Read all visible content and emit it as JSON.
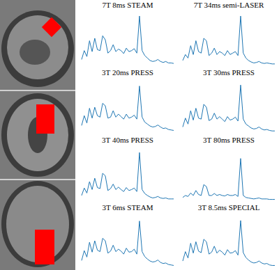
{
  "chart_data": [
    {
      "type": "line",
      "title": "7T 8ms STEAM",
      "color": "#1f77b4",
      "ylim": [
        0,
        1.1
      ],
      "tick_labels": false,
      "values": [
        0.12,
        0.3,
        0.18,
        0.5,
        0.28,
        0.55,
        0.32,
        0.3,
        0.6,
        0.52,
        0.25,
        0.3,
        0.42,
        0.28,
        0.33,
        0.3,
        0.24,
        0.35,
        0.28,
        0.3,
        0.34,
        0.25,
        1.0,
        0.3,
        0.2,
        0.15,
        0.1,
        0.08,
        0.09,
        0.12,
        0.08,
        0.06,
        0.08,
        0.05,
        0.05,
        0.04
      ]
    },
    {
      "type": "line",
      "title": "7T 34ms semi-LASER",
      "color": "#1f77b4",
      "ylim": [
        0,
        1.1
      ],
      "tick_labels": false,
      "values": [
        0.1,
        0.22,
        0.15,
        0.4,
        0.22,
        0.5,
        0.28,
        0.25,
        0.55,
        0.5,
        0.2,
        0.25,
        0.35,
        0.22,
        0.28,
        0.25,
        0.2,
        0.3,
        0.22,
        0.25,
        0.28,
        0.2,
        1.0,
        0.25,
        0.15,
        0.1,
        0.07,
        0.05,
        0.06,
        0.08,
        0.05,
        0.04,
        0.05,
        0.04,
        0.03,
        0.03
      ]
    },
    {
      "type": "line",
      "title": "3T 20ms PRESS",
      "color": "#1f77b4",
      "ylim": [
        0,
        1.1
      ],
      "tick_labels": false,
      "values": [
        0.15,
        0.35,
        0.2,
        0.5,
        0.3,
        0.52,
        0.35,
        0.32,
        0.6,
        0.55,
        0.3,
        0.32,
        0.45,
        0.32,
        0.38,
        0.33,
        0.28,
        0.38,
        0.3,
        0.32,
        0.36,
        0.28,
        0.95,
        0.32,
        0.22,
        0.18,
        0.14,
        0.12,
        0.13,
        0.16,
        0.12,
        0.09,
        0.1,
        0.07,
        0.06,
        0.05
      ]
    },
    {
      "type": "line",
      "title": "3T 30ms PRESS",
      "color": "#1f77b4",
      "ylim": [
        0,
        1.1
      ],
      "tick_labels": false,
      "values": [
        0.12,
        0.3,
        0.18,
        0.45,
        0.26,
        0.5,
        0.3,
        0.28,
        0.58,
        0.52,
        0.25,
        0.28,
        0.4,
        0.28,
        0.33,
        0.28,
        0.23,
        0.33,
        0.26,
        0.28,
        0.32,
        0.24,
        0.97,
        0.28,
        0.18,
        0.14,
        0.1,
        0.08,
        0.09,
        0.12,
        0.08,
        0.06,
        0.07,
        0.05,
        0.04,
        0.04
      ]
    },
    {
      "type": "line",
      "title": "3T 40ms PRESS",
      "color": "#1f77b4",
      "ylim": [
        0,
        1.1
      ],
      "tick_labels": false,
      "values": [
        0.1,
        0.25,
        0.15,
        0.38,
        0.22,
        0.45,
        0.26,
        0.24,
        0.55,
        0.5,
        0.2,
        0.24,
        0.33,
        0.22,
        0.27,
        0.22,
        0.18,
        0.26,
        0.2,
        0.22,
        0.25,
        0.18,
        0.97,
        0.22,
        0.14,
        0.1,
        0.07,
        0.05,
        0.06,
        0.08,
        0.05,
        0.04,
        0.05,
        0.03,
        0.03,
        0.03
      ]
    },
    {
      "type": "line",
      "title": "3T 80ms PRESS",
      "color": "#1f77b4",
      "ylim": [
        0,
        1.1
      ],
      "tick_labels": false,
      "values": [
        0.06,
        0.1,
        0.08,
        0.15,
        0.1,
        0.2,
        0.12,
        0.1,
        0.32,
        0.28,
        0.1,
        0.1,
        0.14,
        0.1,
        0.12,
        0.1,
        0.09,
        0.12,
        0.1,
        0.1,
        0.12,
        0.08,
        0.85,
        0.1,
        0.06,
        0.05,
        0.04,
        0.03,
        0.04,
        0.05,
        0.03,
        0.03,
        0.03,
        0.02,
        0.02,
        0.02
      ]
    },
    {
      "type": "line",
      "title": "3T 6ms STEAM",
      "color": "#1f77b4",
      "ylim": [
        0,
        1.1
      ],
      "tick_labels": false,
      "values": [
        0.15,
        0.35,
        0.22,
        0.52,
        0.32,
        0.55,
        0.36,
        0.33,
        0.6,
        0.55,
        0.3,
        0.34,
        0.46,
        0.33,
        0.38,
        0.34,
        0.28,
        0.4,
        0.32,
        0.33,
        0.38,
        0.28,
        0.95,
        0.33,
        0.23,
        0.18,
        0.14,
        0.12,
        0.13,
        0.16,
        0.11,
        0.09,
        0.1,
        0.07,
        0.06,
        0.05
      ]
    },
    {
      "type": "line",
      "title": "3T 8.5ms SPECIAL",
      "color": "#1f77b4",
      "ylim": [
        0,
        1.1
      ],
      "tick_labels": false,
      "values": [
        0.14,
        0.33,
        0.2,
        0.5,
        0.3,
        0.53,
        0.34,
        0.31,
        0.58,
        0.53,
        0.28,
        0.32,
        0.44,
        0.3,
        0.36,
        0.32,
        0.26,
        0.37,
        0.3,
        0.31,
        0.35,
        0.26,
        0.96,
        0.31,
        0.21,
        0.16,
        0.12,
        0.1,
        0.11,
        0.14,
        0.1,
        0.08,
        0.09,
        0.06,
        0.05,
        0.05
      ]
    }
  ]
}
